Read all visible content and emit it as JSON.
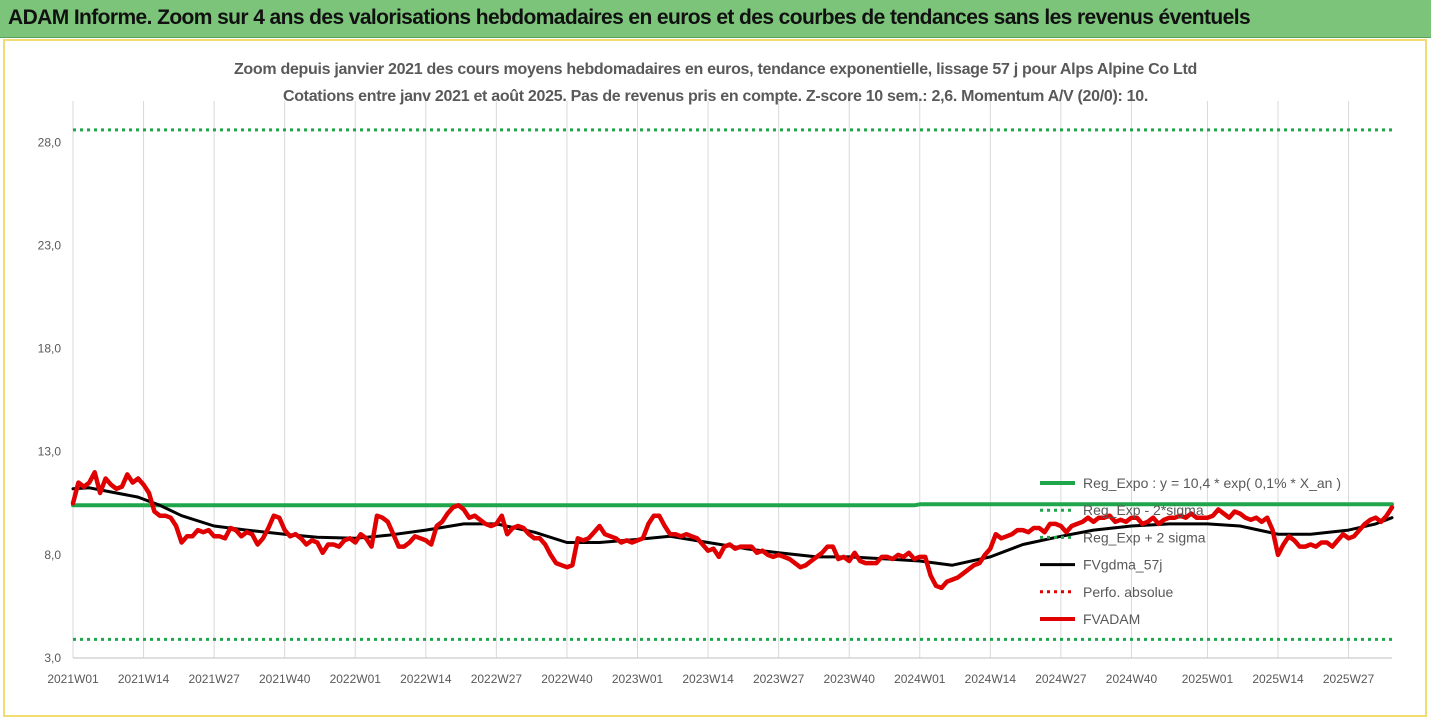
{
  "banner": {
    "title": "ADAM Informe. Zoom sur 4 ans des valorisations hebdomadaires en euros et des courbes de tendances sans les revenus éventuels"
  },
  "chart_data": {
    "type": "line",
    "title": "Zoom depuis janvier 2021 des cours moyens hebdomadaires en euros, tendance exponentielle, lissage 57 j pour Alps Alpine Co Ltd",
    "subtitle": "Cotations entre janv 2021 et août 2025. Pas de revenus pris en compte. Z-score 10 sem.: 2,6. Momentum A/V (20/0): 10.",
    "xlabel": "",
    "ylabel": "",
    "ylim": [
      3,
      30
    ],
    "y_ticks": [
      "3,0",
      "8,0",
      "13,0",
      "18,0",
      "23,0",
      "28,0"
    ],
    "y_tick_values": [
      3,
      8,
      13,
      18,
      23,
      28
    ],
    "x_ticks": [
      "2021W01",
      "2021W14",
      "2021W27",
      "2021W40",
      "2022W01",
      "2022W14",
      "2022W27",
      "2022W40",
      "2023W01",
      "2023W14",
      "2023W27",
      "2023W40",
      "2024W01",
      "2024W14",
      "2024W27",
      "2024W40",
      "2025W01",
      "2025W14",
      "2025W27"
    ],
    "x_tick_weeks": [
      0,
      13,
      26,
      39,
      52,
      65,
      78,
      91,
      104,
      117,
      130,
      143,
      156,
      169,
      182,
      195,
      209,
      222,
      235
    ],
    "n_weeks": 243,
    "grid": "vertical",
    "legend_position": "right",
    "legend": [
      {
        "label": "Reg_Expo : y = 10,4 * exp( 0,1% *  X_an )",
        "color": "#1fa64a",
        "style": "solid-thick"
      },
      {
        "label": "Reg_Exp - 2*sigma",
        "color": "#1fa64a",
        "style": "dotted"
      },
      {
        "label": "Reg_Exp + 2 sigma",
        "color": "#1fa64a",
        "style": "dotted"
      },
      {
        "label": "FVgdma_57j",
        "color": "#000000",
        "style": "solid"
      },
      {
        "label": "Perfo. absolue",
        "color": "#e00000",
        "style": "dotted"
      },
      {
        "label": "FVADAM",
        "color": "#e00000",
        "style": "solid-thick"
      }
    ],
    "series": [
      {
        "name": "Reg_Expo : y = 10,4 * exp( 0,1% *  X_an )",
        "color": "#1fa64a",
        "points": [
          [
            0,
            10.4
          ],
          [
            155,
            10.4
          ],
          [
            156,
            10.45
          ],
          [
            243,
            10.45
          ]
        ]
      },
      {
        "name": "Reg_Exp - 2*sigma",
        "color": "#1fa64a",
        "points": [
          [
            0,
            3.9
          ],
          [
            243,
            3.9
          ]
        ]
      },
      {
        "name": "Reg_Exp + 2 sigma",
        "color": "#1fa64a",
        "points": [
          [
            0,
            28.6
          ],
          [
            243,
            28.6
          ]
        ]
      },
      {
        "name": "FVgdma_57j",
        "color": "#000000",
        "points": [
          [
            0,
            11.2
          ],
          [
            3,
            11.25
          ],
          [
            8,
            11.0
          ],
          [
            12,
            10.8
          ],
          [
            16,
            10.4
          ],
          [
            20,
            9.9
          ],
          [
            26,
            9.4
          ],
          [
            32,
            9.2
          ],
          [
            39,
            9.0
          ],
          [
            45,
            8.85
          ],
          [
            52,
            8.8
          ],
          [
            58,
            8.95
          ],
          [
            65,
            9.2
          ],
          [
            72,
            9.5
          ],
          [
            78,
            9.5
          ],
          [
            85,
            9.1
          ],
          [
            91,
            8.6
          ],
          [
            97,
            8.6
          ],
          [
            104,
            8.75
          ],
          [
            110,
            8.9
          ],
          [
            117,
            8.6
          ],
          [
            124,
            8.3
          ],
          [
            130,
            8.1
          ],
          [
            137,
            7.9
          ],
          [
            143,
            7.9
          ],
          [
            150,
            7.8
          ],
          [
            156,
            7.7
          ],
          [
            162,
            7.5
          ],
          [
            169,
            7.9
          ],
          [
            175,
            8.5
          ],
          [
            182,
            8.9
          ],
          [
            188,
            9.2
          ],
          [
            195,
            9.4
          ],
          [
            202,
            9.5
          ],
          [
            209,
            9.5
          ],
          [
            215,
            9.4
          ],
          [
            222,
            9.0
          ],
          [
            228,
            9.0
          ],
          [
            235,
            9.2
          ],
          [
            240,
            9.5
          ],
          [
            243,
            9.8
          ]
        ]
      },
      {
        "name": "FVADAM",
        "color": "#e00000",
        "points": [
          [
            0,
            10.5
          ],
          [
            1,
            11.5
          ],
          [
            2,
            11.3
          ],
          [
            3,
            11.5
          ],
          [
            4,
            12.0
          ],
          [
            5,
            11.0
          ],
          [
            6,
            11.7
          ],
          [
            7,
            11.4
          ],
          [
            8,
            11.2
          ],
          [
            9,
            11.3
          ],
          [
            10,
            11.9
          ],
          [
            11,
            11.5
          ],
          [
            12,
            11.7
          ],
          [
            13,
            11.4
          ],
          [
            14,
            11.0
          ],
          [
            15,
            10.1
          ],
          [
            16,
            9.9
          ],
          [
            17,
            9.9
          ],
          [
            18,
            9.8
          ],
          [
            19,
            9.4
          ],
          [
            20,
            8.6
          ],
          [
            21,
            8.9
          ],
          [
            22,
            8.9
          ],
          [
            23,
            9.2
          ],
          [
            24,
            9.1
          ],
          [
            25,
            9.2
          ],
          [
            26,
            8.9
          ],
          [
            27,
            8.9
          ],
          [
            28,
            8.8
          ],
          [
            29,
            9.3
          ],
          [
            30,
            9.2
          ],
          [
            31,
            8.9
          ],
          [
            32,
            9.1
          ],
          [
            33,
            9.0
          ],
          [
            34,
            8.5
          ],
          [
            35,
            8.8
          ],
          [
            36,
            9.3
          ],
          [
            37,
            9.9
          ],
          [
            38,
            9.8
          ],
          [
            39,
            9.2
          ],
          [
            40,
            8.9
          ],
          [
            41,
            9.0
          ],
          [
            42,
            8.8
          ],
          [
            43,
            8.5
          ],
          [
            44,
            8.7
          ],
          [
            45,
            8.6
          ],
          [
            46,
            8.1
          ],
          [
            47,
            8.5
          ],
          [
            48,
            8.5
          ],
          [
            49,
            8.4
          ],
          [
            50,
            8.7
          ],
          [
            51,
            8.8
          ],
          [
            52,
            8.6
          ],
          [
            53,
            9.0
          ],
          [
            54,
            8.8
          ],
          [
            55,
            8.4
          ],
          [
            56,
            9.9
          ],
          [
            57,
            9.8
          ],
          [
            58,
            9.6
          ],
          [
            59,
            9.0
          ],
          [
            60,
            8.4
          ],
          [
            61,
            8.4
          ],
          [
            62,
            8.6
          ],
          [
            63,
            8.9
          ],
          [
            64,
            8.8
          ],
          [
            65,
            8.7
          ],
          [
            66,
            8.5
          ],
          [
            67,
            9.4
          ],
          [
            68,
            9.6
          ],
          [
            69,
            10.0
          ],
          [
            70,
            10.3
          ],
          [
            71,
            10.4
          ],
          [
            72,
            10.2
          ],
          [
            73,
            9.8
          ],
          [
            74,
            9.9
          ],
          [
            75,
            9.7
          ],
          [
            76,
            9.5
          ],
          [
            77,
            9.4
          ],
          [
            78,
            9.5
          ],
          [
            79,
            9.9
          ],
          [
            80,
            9.0
          ],
          [
            81,
            9.3
          ],
          [
            82,
            9.4
          ],
          [
            83,
            9.3
          ],
          [
            84,
            9.0
          ],
          [
            85,
            8.8
          ],
          [
            86,
            8.8
          ],
          [
            87,
            8.5
          ],
          [
            88,
            8.0
          ],
          [
            89,
            7.6
          ],
          [
            90,
            7.5
          ],
          [
            91,
            7.4
          ],
          [
            92,
            7.5
          ],
          [
            93,
            8.8
          ],
          [
            94,
            8.7
          ],
          [
            95,
            8.8
          ],
          [
            96,
            9.1
          ],
          [
            97,
            9.4
          ],
          [
            98,
            9.0
          ],
          [
            99,
            8.9
          ],
          [
            100,
            8.8
          ],
          [
            101,
            8.6
          ],
          [
            102,
            8.7
          ],
          [
            103,
            8.6
          ],
          [
            104,
            8.7
          ],
          [
            105,
            8.8
          ],
          [
            106,
            9.5
          ],
          [
            107,
            9.9
          ],
          [
            108,
            9.9
          ],
          [
            109,
            9.4
          ],
          [
            110,
            9.0
          ],
          [
            111,
            9.0
          ],
          [
            112,
            8.9
          ],
          [
            113,
            9.0
          ],
          [
            114,
            8.9
          ],
          [
            115,
            8.8
          ],
          [
            116,
            8.5
          ],
          [
            117,
            8.2
          ],
          [
            118,
            8.3
          ],
          [
            119,
            7.9
          ],
          [
            120,
            8.4
          ],
          [
            121,
            8.5
          ],
          [
            122,
            8.3
          ],
          [
            123,
            8.4
          ],
          [
            124,
            8.4
          ],
          [
            125,
            8.4
          ],
          [
            126,
            8.1
          ],
          [
            127,
            8.2
          ],
          [
            128,
            8.0
          ],
          [
            129,
            7.9
          ],
          [
            130,
            8.0
          ],
          [
            131,
            7.9
          ],
          [
            132,
            7.8
          ],
          [
            133,
            7.6
          ],
          [
            134,
            7.4
          ],
          [
            135,
            7.5
          ],
          [
            136,
            7.7
          ],
          [
            137,
            7.9
          ],
          [
            138,
            8.1
          ],
          [
            139,
            8.4
          ],
          [
            140,
            8.4
          ],
          [
            141,
            7.8
          ],
          [
            142,
            7.9
          ],
          [
            143,
            7.7
          ],
          [
            144,
            8.1
          ],
          [
            145,
            7.7
          ],
          [
            146,
            7.6
          ],
          [
            147,
            7.6
          ],
          [
            148,
            7.6
          ],
          [
            149,
            7.9
          ],
          [
            150,
            7.9
          ],
          [
            151,
            7.8
          ],
          [
            152,
            8.0
          ],
          [
            153,
            7.9
          ],
          [
            154,
            8.1
          ],
          [
            155,
            7.8
          ],
          [
            156,
            7.9
          ],
          [
            157,
            7.9
          ],
          [
            158,
            7.0
          ],
          [
            159,
            6.5
          ],
          [
            160,
            6.4
          ],
          [
            161,
            6.7
          ],
          [
            162,
            6.8
          ],
          [
            163,
            6.9
          ],
          [
            164,
            7.1
          ],
          [
            165,
            7.3
          ],
          [
            166,
            7.5
          ],
          [
            167,
            7.6
          ],
          [
            168,
            8.0
          ],
          [
            169,
            8.3
          ],
          [
            170,
            9.0
          ],
          [
            171,
            8.8
          ],
          [
            172,
            8.9
          ],
          [
            173,
            9.0
          ],
          [
            174,
            9.2
          ],
          [
            175,
            9.2
          ],
          [
            176,
            9.1
          ],
          [
            177,
            9.3
          ],
          [
            178,
            9.3
          ],
          [
            179,
            9.1
          ],
          [
            180,
            9.5
          ],
          [
            181,
            9.5
          ],
          [
            182,
            9.4
          ],
          [
            183,
            9.1
          ],
          [
            184,
            9.4
          ],
          [
            185,
            9.5
          ],
          [
            186,
            9.6
          ],
          [
            187,
            9.8
          ],
          [
            188,
            9.6
          ],
          [
            189,
            9.8
          ],
          [
            190,
            9.8
          ],
          [
            191,
            9.9
          ],
          [
            192,
            9.6
          ],
          [
            193,
            9.7
          ],
          [
            194,
            9.6
          ],
          [
            195,
            9.8
          ],
          [
            196,
            9.8
          ],
          [
            197,
            9.5
          ],
          [
            198,
            9.6
          ],
          [
            199,
            9.8
          ],
          [
            200,
            9.5
          ],
          [
            201,
            9.7
          ],
          [
            202,
            9.8
          ],
          [
            203,
            9.8
          ],
          [
            204,
            9.9
          ],
          [
            205,
            9.8
          ],
          [
            206,
            10.0
          ],
          [
            207,
            9.8
          ],
          [
            208,
            9.8
          ],
          [
            209,
            9.8
          ],
          [
            210,
            9.9
          ],
          [
            211,
            10.2
          ],
          [
            212,
            10.0
          ],
          [
            213,
            9.8
          ],
          [
            214,
            10.1
          ],
          [
            215,
            10.0
          ],
          [
            216,
            9.8
          ],
          [
            217,
            9.7
          ],
          [
            218,
            9.8
          ],
          [
            219,
            9.6
          ],
          [
            220,
            9.8
          ],
          [
            221,
            9.2
          ],
          [
            222,
            8.0
          ],
          [
            223,
            8.5
          ],
          [
            224,
            8.9
          ],
          [
            225,
            8.7
          ],
          [
            226,
            8.4
          ],
          [
            227,
            8.4
          ],
          [
            228,
            8.5
          ],
          [
            229,
            8.4
          ],
          [
            230,
            8.6
          ],
          [
            231,
            8.6
          ],
          [
            232,
            8.4
          ],
          [
            233,
            8.7
          ],
          [
            234,
            9.0
          ],
          [
            235,
            8.8
          ],
          [
            236,
            8.9
          ],
          [
            237,
            9.2
          ],
          [
            238,
            9.5
          ],
          [
            239,
            9.7
          ],
          [
            240,
            9.8
          ],
          [
            241,
            9.6
          ],
          [
            242,
            9.9
          ],
          [
            243,
            10.3
          ]
        ]
      }
    ]
  }
}
